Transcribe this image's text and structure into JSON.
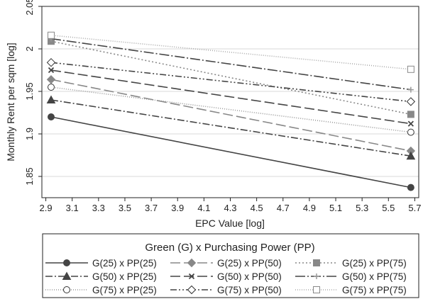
{
  "chart_data": {
    "type": "line",
    "xlabel": "EPC Value [log]",
    "ylabel": "Monthly Rent per sqm [log]",
    "xlim": [
      2.87,
      5.73
    ],
    "ylim": [
      1.825,
      2.05
    ],
    "xticks": [
      2.9,
      3.1,
      3.3,
      3.5,
      3.7,
      3.9,
      4.1,
      4.3,
      4.5,
      4.7,
      4.9,
      5.1,
      5.3,
      5.5,
      5.7
    ],
    "xtick_labels": [
      "2.9",
      "3.1",
      "3.3",
      "3.5",
      "3.7",
      "3.9",
      "4.1",
      "4.3",
      "4.5",
      "4.7",
      "4.9",
      "5.1",
      "5.3",
      "5.5",
      "5.7"
    ],
    "yticks": [
      1.85,
      1.9,
      1.95,
      2.0,
      2.05
    ],
    "ytick_labels": [
      "1.85",
      "1.9",
      "1.95",
      "2",
      "2.05"
    ],
    "grid": true,
    "legend": {
      "title": "Green (G) x Purchasing Power (PP)",
      "placement": "bottom",
      "columns": 3
    },
    "series": [
      {
        "name": "G(25) x PP(25)",
        "x": [
          2.94,
          5.67
        ],
        "values": [
          1.92,
          1.837
        ],
        "marker": "circle-filled",
        "dash": "solid",
        "color": "#444444"
      },
      {
        "name": "G(25) x PP(50)",
        "x": [
          2.94,
          5.67
        ],
        "values": [
          1.964,
          1.88
        ],
        "marker": "diamond-filled",
        "dash": "longdash",
        "color": "#888888"
      },
      {
        "name": "G(25) x PP(75)",
        "x": [
          2.94,
          5.67
        ],
        "values": [
          2.009,
          1.923
        ],
        "marker": "square-filled",
        "dash": "dot",
        "color": "#888888"
      },
      {
        "name": "G(50) x PP(25)",
        "x": [
          2.94,
          5.67
        ],
        "values": [
          1.94,
          1.874
        ],
        "marker": "triangle-filled",
        "dash": "dashdot",
        "color": "#444444"
      },
      {
        "name": "G(50) x PP(50)",
        "x": [
          2.94,
          5.67
        ],
        "values": [
          1.975,
          1.912
        ],
        "marker": "x",
        "dash": "longdash",
        "color": "#444444"
      },
      {
        "name": "G(50) x PP(75)",
        "x": [
          2.94,
          5.67
        ],
        "values": [
          2.012,
          1.952
        ],
        "marker": "plus",
        "dash": "longdashdot",
        "color": "#444444"
      },
      {
        "name": "G(75) x PP(25)",
        "x": [
          2.94,
          5.67
        ],
        "values": [
          1.955,
          1.902
        ],
        "marker": "circle-open",
        "dash": "finedot",
        "color": "#999999"
      },
      {
        "name": "G(75) x PP(50)",
        "x": [
          2.94,
          5.67
        ],
        "values": [
          1.984,
          1.938
        ],
        "marker": "diamond-open",
        "dash": "dashdotdot",
        "color": "#444444"
      },
      {
        "name": "G(75) x PP(75)",
        "x": [
          2.94,
          5.67
        ],
        "values": [
          2.016,
          1.976
        ],
        "marker": "square-open",
        "dash": "finedot",
        "color": "#aaaaaa"
      }
    ]
  }
}
